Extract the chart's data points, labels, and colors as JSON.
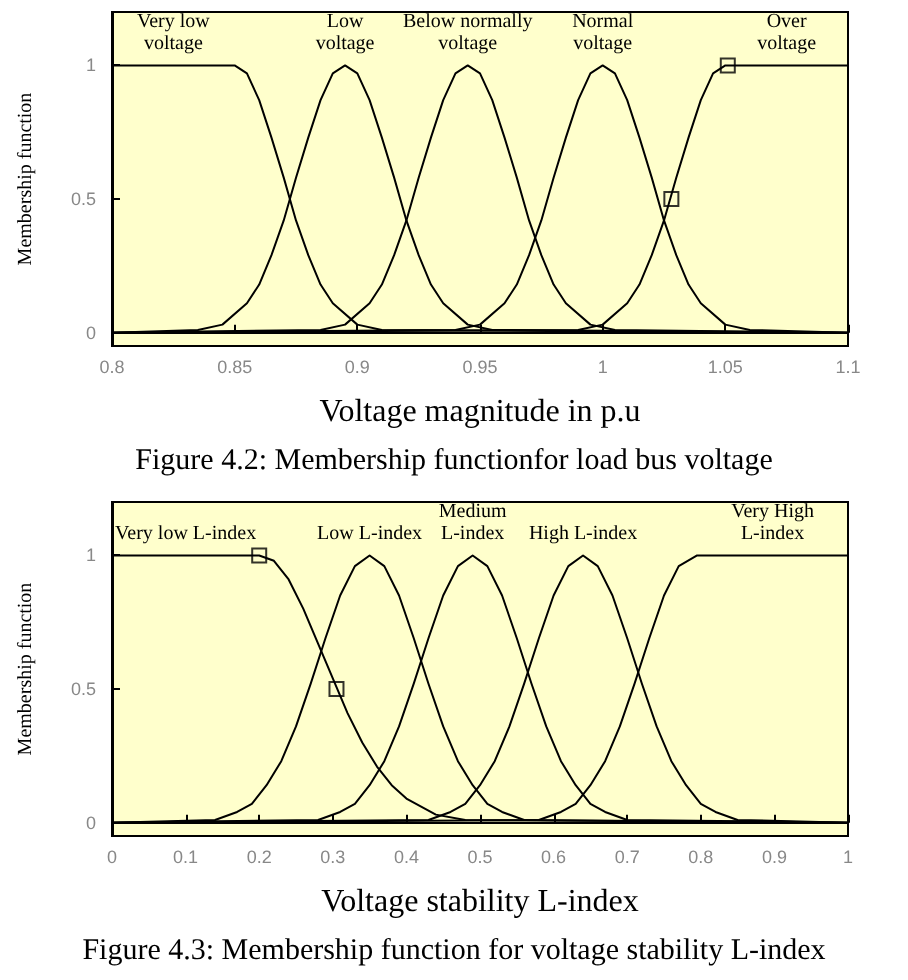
{
  "chart_data": [
    {
      "type": "line",
      "title": "Figure 4.2: Membership functionfor load bus voltage",
      "xlabel": "Voltage magnitude in p.u",
      "ylabel": "Membership function",
      "xlim": [
        0.8,
        1.1
      ],
      "ylim": [
        -0.05,
        1.2
      ],
      "xticks": [
        0.8,
        0.85,
        0.9,
        0.95,
        1,
        1.05,
        1.1
      ],
      "yticks": [
        0,
        0.5,
        1
      ],
      "marker": "none",
      "series": [
        {
          "name": "Very low\nvoltage",
          "color": "#000000",
          "x": [
            0.8,
            0.85,
            0.855,
            0.86,
            0.865,
            0.87,
            0.875,
            0.88,
            0.885,
            0.89,
            0.9,
            0.91,
            1.1
          ],
          "values": [
            1,
            1,
            0.97,
            0.87,
            0.73,
            0.58,
            0.42,
            0.29,
            0.18,
            0.11,
            0.03,
            0.01,
            0
          ]
        },
        {
          "name": "Low\nvoltage",
          "color": "#000000",
          "x": [
            0.8,
            0.835,
            0.845,
            0.855,
            0.86,
            0.865,
            0.87,
            0.875,
            0.88,
            0.885,
            0.89,
            0.895,
            0.9,
            0.905,
            0.91,
            0.915,
            0.92,
            0.925,
            0.93,
            0.935,
            0.945,
            0.955,
            1.1
          ],
          "values": [
            0,
            0.01,
            0.03,
            0.11,
            0.18,
            0.29,
            0.42,
            0.58,
            0.73,
            0.87,
            0.97,
            1,
            0.97,
            0.87,
            0.73,
            0.58,
            0.42,
            0.29,
            0.18,
            0.11,
            0.03,
            0.01,
            0
          ]
        },
        {
          "name": "Below normally\nvoltage",
          "color": "#000000",
          "x": [
            0.8,
            0.885,
            0.895,
            0.905,
            0.91,
            0.915,
            0.92,
            0.925,
            0.93,
            0.935,
            0.94,
            0.945,
            0.95,
            0.955,
            0.96,
            0.965,
            0.97,
            0.975,
            0.98,
            0.985,
            0.995,
            1.005,
            1.1
          ],
          "values": [
            0,
            0.01,
            0.03,
            0.11,
            0.18,
            0.29,
            0.42,
            0.58,
            0.73,
            0.87,
            0.97,
            1,
            0.97,
            0.87,
            0.73,
            0.58,
            0.42,
            0.29,
            0.18,
            0.11,
            0.03,
            0.01,
            0
          ]
        },
        {
          "name": "Normal\nvoltage",
          "color": "#000000",
          "x": [
            0.8,
            0.94,
            0.95,
            0.96,
            0.965,
            0.97,
            0.975,
            0.98,
            0.985,
            0.99,
            0.995,
            1,
            1.005,
            1.01,
            1.015,
            1.02,
            1.025,
            1.03,
            1.035,
            1.04,
            1.05,
            1.06,
            1.1
          ],
          "values": [
            0,
            0.01,
            0.03,
            0.11,
            0.18,
            0.29,
            0.42,
            0.58,
            0.73,
            0.87,
            0.97,
            1,
            0.97,
            0.87,
            0.73,
            0.58,
            0.42,
            0.29,
            0.18,
            0.11,
            0.03,
            0.01,
            0
          ]
        },
        {
          "name": "Over\nvoltage",
          "color": "#000000",
          "x": [
            0.8,
            0.99,
            1,
            1.01,
            1.015,
            1.02,
            1.025,
            1.03,
            1.035,
            1.04,
            1.045,
            1.05,
            1.1
          ],
          "values": [
            0,
            0.01,
            0.03,
            0.11,
            0.18,
            0.29,
            0.42,
            0.58,
            0.73,
            0.87,
            0.97,
            1,
            1
          ]
        },
        {
          "type": "scatter",
          "marker": "square",
          "color": "#000000",
          "x": [
            1.051,
            1.028
          ],
          "values": [
            1,
            0.5
          ]
        }
      ]
    },
    {
      "type": "line",
      "title": "Figure 4.3: Membership function for voltage stability L-index",
      "xlabel": "Voltage stability L-index",
      "ylabel": "Membership function",
      "xlim": [
        0,
        1
      ],
      "ylim": [
        -0.05,
        1.2
      ],
      "xticks": [
        0,
        0.1,
        0.2,
        0.3,
        0.4,
        0.5,
        0.6,
        0.7,
        0.8,
        0.9,
        1
      ],
      "yticks": [
        0,
        0.5,
        1
      ],
      "marker": "none",
      "series": [
        {
          "name": "Very low L-index",
          "color": "#000000",
          "x": [
            0,
            0.2,
            0.22,
            0.24,
            0.26,
            0.28,
            0.3,
            0.32,
            0.34,
            0.36,
            0.38,
            0.4,
            0.44,
            0.48,
            1
          ],
          "values": [
            1,
            1,
            0.98,
            0.91,
            0.8,
            0.67,
            0.54,
            0.41,
            0.3,
            0.21,
            0.14,
            0.09,
            0.03,
            0.01,
            0
          ]
        },
        {
          "name": "Low L-index",
          "color": "#000000",
          "x": [
            0,
            0.14,
            0.17,
            0.19,
            0.21,
            0.23,
            0.25,
            0.27,
            0.29,
            0.31,
            0.33,
            0.35,
            0.37,
            0.39,
            0.41,
            0.43,
            0.45,
            0.47,
            0.49,
            0.51,
            0.53,
            0.56,
            1
          ],
          "values": [
            0,
            0.01,
            0.04,
            0.07,
            0.14,
            0.23,
            0.36,
            0.52,
            0.69,
            0.85,
            0.96,
            1,
            0.96,
            0.85,
            0.69,
            0.52,
            0.36,
            0.23,
            0.14,
            0.07,
            0.04,
            0.01,
            0
          ]
        },
        {
          "name": "Medium\nL-index",
          "color": "#000000",
          "x": [
            0,
            0.28,
            0.31,
            0.33,
            0.35,
            0.37,
            0.39,
            0.41,
            0.43,
            0.45,
            0.47,
            0.49,
            0.51,
            0.53,
            0.55,
            0.57,
            0.59,
            0.61,
            0.63,
            0.65,
            0.67,
            0.7,
            1
          ],
          "values": [
            0,
            0.01,
            0.04,
            0.07,
            0.14,
            0.23,
            0.36,
            0.52,
            0.69,
            0.85,
            0.96,
            1,
            0.96,
            0.85,
            0.69,
            0.52,
            0.36,
            0.23,
            0.14,
            0.07,
            0.04,
            0.01,
            0
          ]
        },
        {
          "name": "High L-index",
          "color": "#000000",
          "x": [
            0,
            0.43,
            0.46,
            0.48,
            0.5,
            0.52,
            0.54,
            0.56,
            0.58,
            0.6,
            0.62,
            0.64,
            0.66,
            0.68,
            0.7,
            0.72,
            0.74,
            0.76,
            0.78,
            0.8,
            0.82,
            0.85,
            1
          ],
          "values": [
            0,
            0.01,
            0.04,
            0.07,
            0.14,
            0.23,
            0.36,
            0.52,
            0.69,
            0.85,
            0.96,
            1,
            0.96,
            0.85,
            0.69,
            0.52,
            0.36,
            0.23,
            0.14,
            0.07,
            0.04,
            0.01,
            0
          ]
        },
        {
          "name": "Very High\nL-index",
          "color": "#000000",
          "x": [
            0,
            0.58,
            0.61,
            0.63,
            0.65,
            0.67,
            0.69,
            0.71,
            0.73,
            0.75,
            0.77,
            0.795,
            1
          ],
          "values": [
            0,
            0.01,
            0.04,
            0.07,
            0.14,
            0.23,
            0.36,
            0.52,
            0.69,
            0.85,
            0.96,
            1,
            1
          ]
        },
        {
          "type": "scatter",
          "marker": "square",
          "color": "#000000",
          "x": [
            0.2,
            0.305
          ],
          "values": [
            1,
            0.5
          ]
        }
      ]
    }
  ]
}
